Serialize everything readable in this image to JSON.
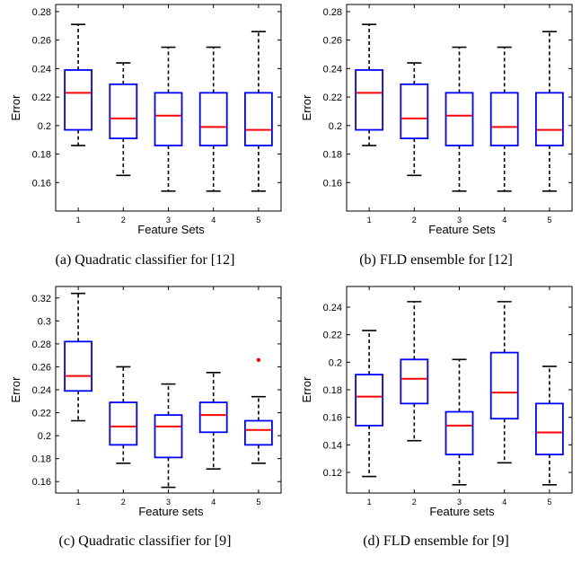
{
  "chart_data": [
    {
      "id": "a",
      "type": "boxplot",
      "caption": "(a)  Quadratic classifier for [12]",
      "xlabel": "Feature Sets",
      "ylabel": "Error",
      "ylim": [
        0.14,
        0.285
      ],
      "yticks": [
        0.16,
        0.18,
        0.2,
        0.22,
        0.24,
        0.26,
        0.28
      ],
      "ytick_labels": [
        "0.16",
        "0.18",
        "0.2",
        "0.22",
        "0.24",
        "0.26",
        "0.28"
      ],
      "categories": [
        "1",
        "2",
        "3",
        "4",
        "5"
      ],
      "boxes": [
        {
          "min": 0.186,
          "q1": 0.197,
          "median": 0.223,
          "q3": 0.239,
          "max": 0.271,
          "outliers": []
        },
        {
          "min": 0.165,
          "q1": 0.191,
          "median": 0.205,
          "q3": 0.229,
          "max": 0.244,
          "outliers": []
        },
        {
          "min": 0.154,
          "q1": 0.186,
          "median": 0.207,
          "q3": 0.223,
          "max": 0.255,
          "outliers": []
        },
        {
          "min": 0.154,
          "q1": 0.186,
          "median": 0.199,
          "q3": 0.223,
          "max": 0.255,
          "outliers": []
        },
        {
          "min": 0.154,
          "q1": 0.186,
          "median": 0.197,
          "q3": 0.223,
          "max": 0.266,
          "outliers": []
        }
      ]
    },
    {
      "id": "b",
      "type": "boxplot",
      "caption": "(b)  FLD ensemble for [12]",
      "xlabel": "Feature Sets",
      "ylabel": "Error",
      "ylim": [
        0.14,
        0.285
      ],
      "yticks": [
        0.16,
        0.18,
        0.2,
        0.22,
        0.24,
        0.26,
        0.28
      ],
      "ytick_labels": [
        "0.16",
        "0.18",
        "0.2",
        "0.22",
        "0.24",
        "0.26",
        "0.28"
      ],
      "categories": [
        "1",
        "2",
        "3",
        "4",
        "5"
      ],
      "boxes": [
        {
          "min": 0.186,
          "q1": 0.197,
          "median": 0.223,
          "q3": 0.239,
          "max": 0.271,
          "outliers": []
        },
        {
          "min": 0.165,
          "q1": 0.191,
          "median": 0.205,
          "q3": 0.229,
          "max": 0.244,
          "outliers": []
        },
        {
          "min": 0.154,
          "q1": 0.186,
          "median": 0.207,
          "q3": 0.223,
          "max": 0.255,
          "outliers": []
        },
        {
          "min": 0.154,
          "q1": 0.186,
          "median": 0.199,
          "q3": 0.223,
          "max": 0.255,
          "outliers": []
        },
        {
          "min": 0.154,
          "q1": 0.186,
          "median": 0.197,
          "q3": 0.223,
          "max": 0.266,
          "outliers": []
        }
      ]
    },
    {
      "id": "c",
      "type": "boxplot",
      "caption": "(c)  Quadratic classifier for [9]",
      "xlabel": "Feature sets",
      "ylabel": "Error",
      "ylim": [
        0.15,
        0.33
      ],
      "yticks": [
        0.16,
        0.18,
        0.2,
        0.22,
        0.24,
        0.26,
        0.28,
        0.3,
        0.32
      ],
      "ytick_labels": [
        "0.16",
        "0.18",
        "0.2",
        "0.22",
        "0.24",
        "0.26",
        "0.28",
        "0.3",
        "0.32"
      ],
      "categories": [
        "1",
        "2",
        "3",
        "4",
        "5"
      ],
      "boxes": [
        {
          "min": 0.213,
          "q1": 0.239,
          "median": 0.252,
          "q3": 0.282,
          "max": 0.324,
          "outliers": []
        },
        {
          "min": 0.176,
          "q1": 0.192,
          "median": 0.208,
          "q3": 0.229,
          "max": 0.26,
          "outliers": []
        },
        {
          "min": 0.155,
          "q1": 0.181,
          "median": 0.208,
          "q3": 0.218,
          "max": 0.245,
          "outliers": []
        },
        {
          "min": 0.171,
          "q1": 0.203,
          "median": 0.218,
          "q3": 0.229,
          "max": 0.255,
          "outliers": []
        },
        {
          "min": 0.176,
          "q1": 0.192,
          "median": 0.205,
          "q3": 0.213,
          "max": 0.234,
          "outliers": [
            0.266
          ]
        }
      ]
    },
    {
      "id": "d",
      "type": "boxplot",
      "caption": "(d)  FLD ensemble for [9]",
      "xlabel": "Feature sets",
      "ylabel": "Error",
      "ylim": [
        0.105,
        0.255
      ],
      "yticks": [
        0.12,
        0.14,
        0.16,
        0.18,
        0.2,
        0.22,
        0.24
      ],
      "ytick_labels": [
        "0.12",
        "0.14",
        "0.16",
        "0.18",
        "0.2",
        "0.22",
        "0.24"
      ],
      "categories": [
        "1",
        "2",
        "3",
        "4",
        "5"
      ],
      "boxes": [
        {
          "min": 0.117,
          "q1": 0.154,
          "median": 0.175,
          "q3": 0.191,
          "max": 0.223,
          "outliers": []
        },
        {
          "min": 0.143,
          "q1": 0.17,
          "median": 0.188,
          "q3": 0.202,
          "max": 0.244,
          "outliers": []
        },
        {
          "min": 0.111,
          "q1": 0.133,
          "median": 0.154,
          "q3": 0.164,
          "max": 0.202,
          "outliers": []
        },
        {
          "min": 0.127,
          "q1": 0.159,
          "median": 0.178,
          "q3": 0.207,
          "max": 0.244,
          "outliers": []
        },
        {
          "min": 0.111,
          "q1": 0.133,
          "median": 0.149,
          "q3": 0.17,
          "max": 0.197,
          "outliers": []
        }
      ]
    }
  ],
  "colors": {
    "box": "#0000ff",
    "median": "#ff0000",
    "whisker": "#000000",
    "outlier": "#ff0000"
  }
}
